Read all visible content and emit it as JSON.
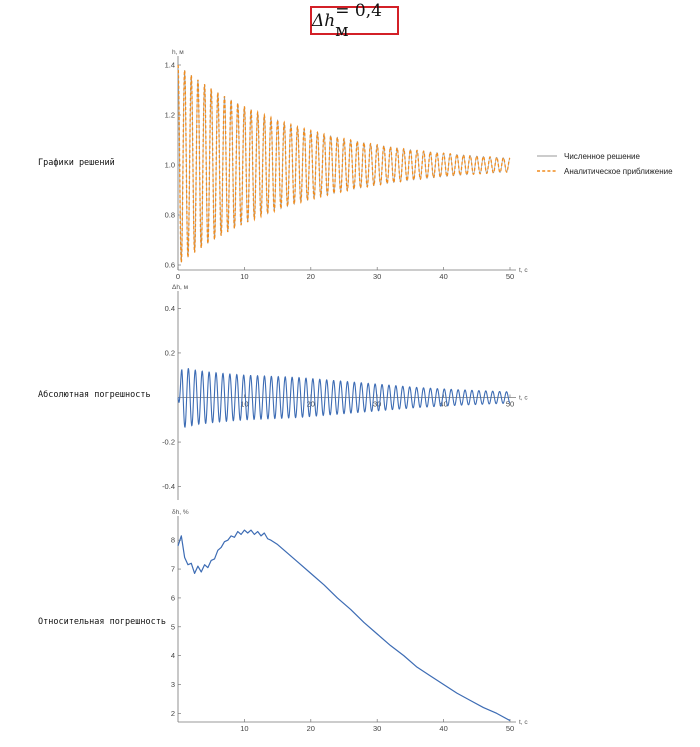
{
  "header": {
    "symbol": "Δh",
    "rest": " = 0,4 м"
  },
  "rows": {
    "solutions": "Графики решений",
    "absolute": "Абсолютная погрешность",
    "relative": "Относительная погрешность"
  },
  "colors": {
    "numeric": "#9a9a9a",
    "analytic": "#f08c1e",
    "error": "#3d6cb4",
    "frame": "#d32027"
  },
  "chart_data": [
    {
      "type": "line",
      "xlabel": "t, с",
      "ylabel": "h, м",
      "xlim": [
        0,
        50
      ],
      "ylim": [
        0.58,
        1.42
      ],
      "xticks": [
        0,
        10,
        20,
        30,
        40,
        50
      ],
      "yticks": [
        0.6,
        0.8,
        1.0,
        1.2,
        1.4
      ],
      "xtick_labels": [
        "0",
        "10",
        "20",
        "30",
        "40",
        "50"
      ],
      "ytick_labels": [
        "0.6",
        "0.8",
        "1.0",
        "1.2",
        "1.4"
      ],
      "legend_position": "right",
      "series": [
        {
          "name": "Численное решение",
          "style": "solid",
          "model": {
            "base": 1.0,
            "amplitude0": 0.4,
            "decay_per_s": 0.0535,
            "cycles": 50,
            "t_end": 50
          }
        },
        {
          "name": "Аналитическое приближение",
          "style": "dashed",
          "model": {
            "base": 1.0,
            "amplitude0": 0.4,
            "decay_per_s": 0.0535,
            "cycles": 50,
            "t_end": 50
          }
        }
      ]
    },
    {
      "type": "line",
      "xlabel": "t, с",
      "ylabel": "Δh, м",
      "xlim": [
        0,
        50
      ],
      "ylim": [
        -0.46,
        0.46
      ],
      "xticks": [
        10,
        20,
        30,
        40,
        50
      ],
      "yticks": [
        -0.4,
        -0.2,
        0.2,
        0.4
      ],
      "xtick_labels": [
        "10",
        "20",
        "30",
        "40",
        "50"
      ],
      "ytick_labels": [
        "-0.4",
        "-0.2",
        "0.2",
        "0.4"
      ],
      "series": [
        {
          "name": "",
          "envelope_t": [
            0,
            3,
            6,
            10,
            14,
            18,
            24,
            30,
            36,
            42,
            50
          ],
          "envelope_amp": [
            0.14,
            0.12,
            0.11,
            0.1,
            0.095,
            0.09,
            0.075,
            0.06,
            0.045,
            0.035,
            0.025
          ],
          "cycles": 48
        }
      ]
    },
    {
      "type": "line",
      "xlabel": "t, с",
      "ylabel": "δh, %",
      "xlim": [
        0,
        50
      ],
      "ylim": [
        1.7,
        8.7
      ],
      "xticks": [
        10,
        20,
        30,
        40,
        50
      ],
      "yticks": [
        2,
        3,
        4,
        5,
        6,
        7,
        8
      ],
      "xtick_labels": [
        "10",
        "20",
        "30",
        "40",
        "50"
      ],
      "ytick_labels": [
        "2",
        "3",
        "4",
        "5",
        "6",
        "7",
        "8"
      ],
      "series": [
        {
          "name": "",
          "t": [
            0,
            0.5,
            1,
            1.5,
            2,
            2.5,
            3,
            3.5,
            4,
            4.5,
            5,
            5.5,
            6,
            6.5,
            7,
            7.5,
            8,
            8.5,
            9,
            9.5,
            10,
            10.5,
            11,
            11.5,
            12,
            12.5,
            13,
            13.5,
            14,
            15,
            16,
            18,
            20,
            22,
            24,
            26,
            28,
            30,
            32,
            34,
            36,
            38,
            40,
            42,
            44,
            46,
            48,
            50
          ],
          "values": [
            7.8,
            8.15,
            7.4,
            7.15,
            7.2,
            6.85,
            7.1,
            6.9,
            7.15,
            7.05,
            7.3,
            7.35,
            7.65,
            7.75,
            7.95,
            8.0,
            8.15,
            8.1,
            8.3,
            8.2,
            8.35,
            8.25,
            8.35,
            8.2,
            8.3,
            8.15,
            8.25,
            8.05,
            8.0,
            7.85,
            7.65,
            7.25,
            6.85,
            6.45,
            6.0,
            5.6,
            5.15,
            4.75,
            4.35,
            4.0,
            3.6,
            3.3,
            3.0,
            2.7,
            2.45,
            2.2,
            2.0,
            1.75
          ]
        }
      ]
    }
  ]
}
